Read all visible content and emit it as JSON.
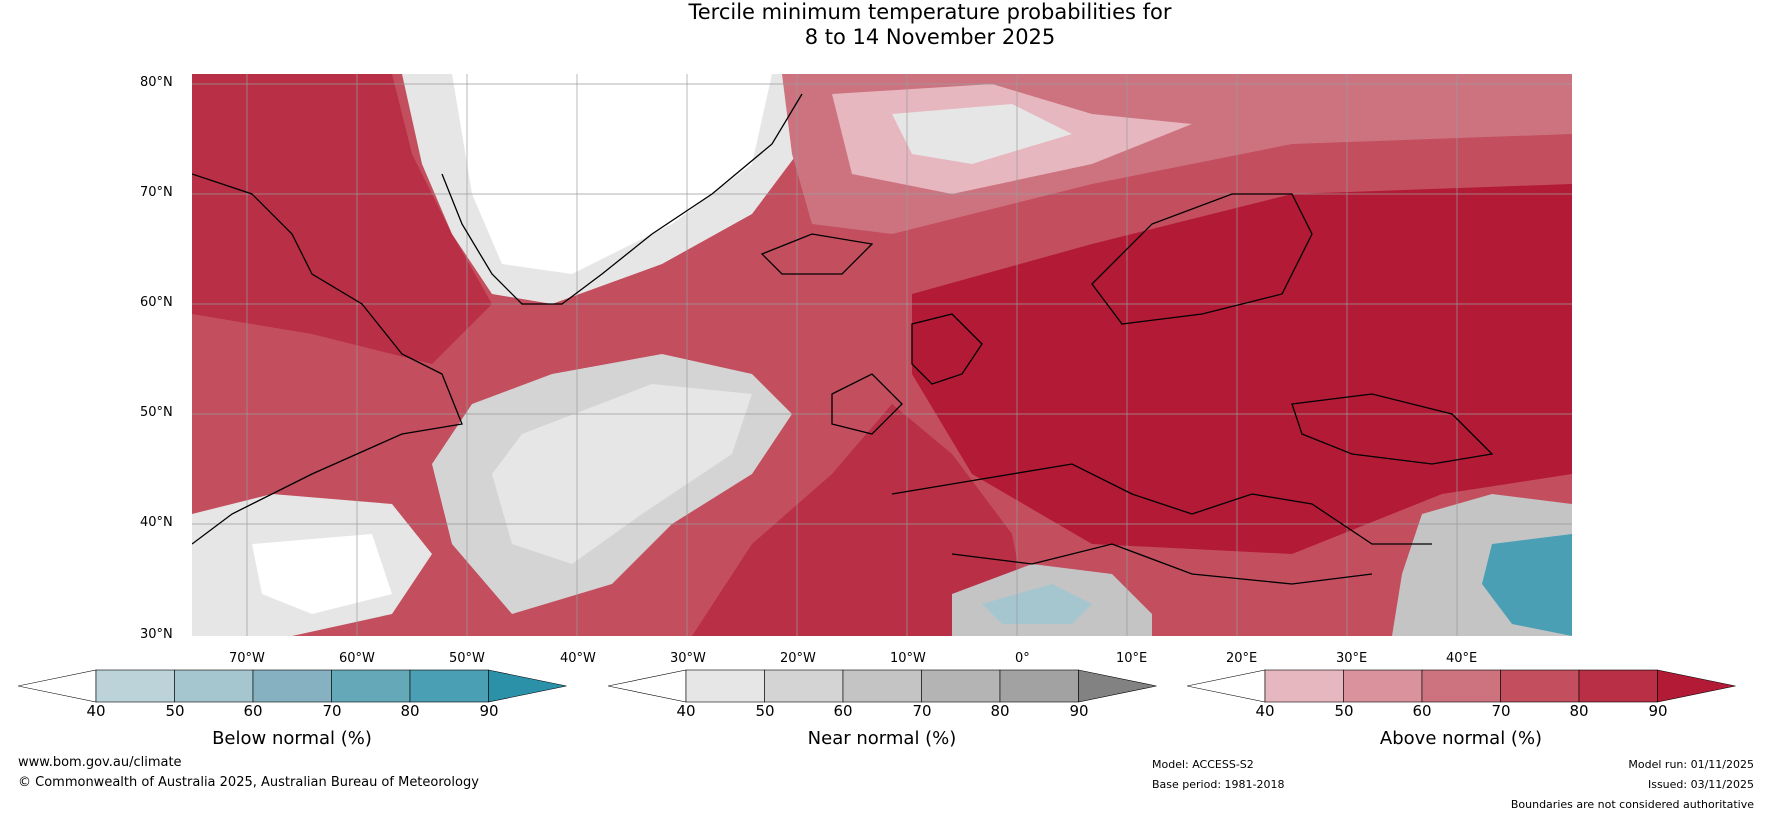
{
  "title": {
    "line1": "Tercile minimum temperature probabilities for",
    "line2": "8 to 14 November 2025"
  },
  "lat_labels": [
    "80°N",
    "70°N",
    "60°N",
    "50°N",
    "40°N",
    "30°N"
  ],
  "lon_labels": [
    "70°W",
    "60°W",
    "50°W",
    "40°W",
    "30°W",
    "20°W",
    "10°W",
    "0°",
    "10°E",
    "20°E",
    "30°E",
    "40°E"
  ],
  "colorbars": [
    {
      "title": "Below normal (%)",
      "ticks": [
        "40",
        "50",
        "60",
        "70",
        "80",
        "90"
      ],
      "colors": [
        "#ffffff",
        "#bdd3da",
        "#a5c5cf",
        "#86b1c0",
        "#65a8b8",
        "#4a9fb5",
        "#2b91a8"
      ]
    },
    {
      "title": "Near normal (%)",
      "ticks": [
        "40",
        "50",
        "60",
        "70",
        "80",
        "90"
      ],
      "colors": [
        "#ffffff",
        "#e6e6e6",
        "#d4d4d4",
        "#c4c4c4",
        "#b4b4b4",
        "#a2a2a2",
        "#828282"
      ]
    },
    {
      "title": "Above normal (%)",
      "ticks": [
        "40",
        "50",
        "60",
        "70",
        "80",
        "90"
      ],
      "colors": [
        "#ffffff",
        "#e7b7bf",
        "#da939d",
        "#cd7380",
        "#c24e5e",
        "#b92f45",
        "#b31a36"
      ]
    }
  ],
  "footer": {
    "website": "www.bom.gov.au/climate",
    "copyright": "© Commonwealth of Australia 2025, Australian Bureau of Meteorology",
    "model": "Model: ACCESS-S2",
    "base_period": "Base period: 1981-2018",
    "model_run": "Model run: 01/11/2025",
    "issued": "Issued: 03/11/2025",
    "disclaimer": "Boundaries are not considered authoritative"
  }
}
